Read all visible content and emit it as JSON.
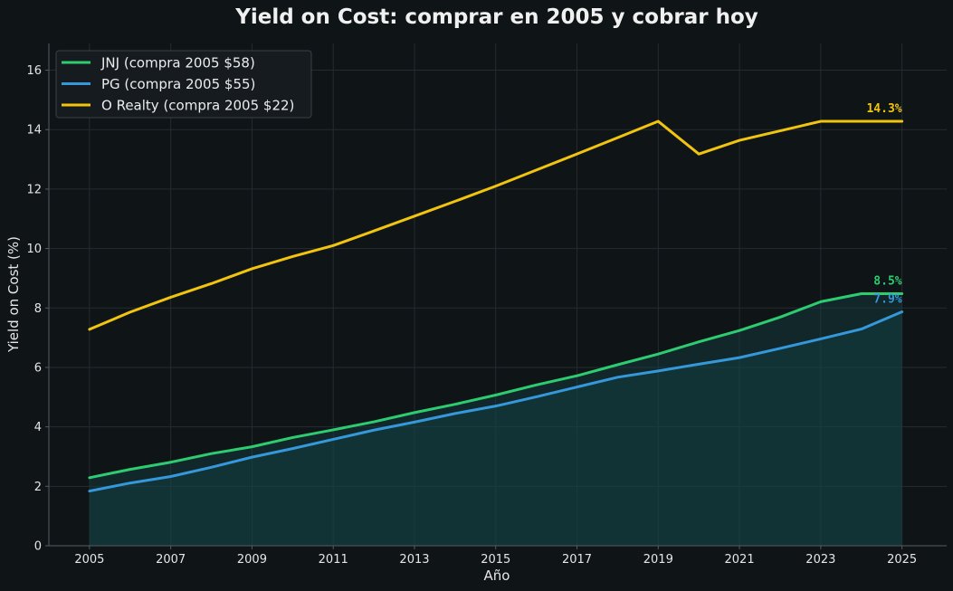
{
  "chart_data": {
    "type": "line",
    "title": "Yield on Cost: comprar en 2005 y cobrar hoy",
    "xlabel": "Año",
    "ylabel": "Yield on Cost (%)",
    "xlim": [
      2004,
      2026.1
    ],
    "ylim": [
      0,
      16.9
    ],
    "x_ticks": [
      2005,
      2007,
      2009,
      2011,
      2013,
      2015,
      2017,
      2019,
      2021,
      2023,
      2025
    ],
    "y_ticks": [
      0,
      2,
      4,
      6,
      8,
      10,
      12,
      14,
      16
    ],
    "grid": true,
    "legend_position": "top-left",
    "x": [
      2005,
      2006,
      2007,
      2008,
      2009,
      2010,
      2011,
      2012,
      2013,
      2014,
      2015,
      2016,
      2017,
      2018,
      2019,
      2020,
      2021,
      2022,
      2023,
      2024,
      2025
    ],
    "series": [
      {
        "name": "JNJ (compra 2005 $58)",
        "color": "#2ecc71",
        "values": [
          2.29,
          2.57,
          2.81,
          3.1,
          3.33,
          3.64,
          3.9,
          4.17,
          4.48,
          4.76,
          5.07,
          5.41,
          5.72,
          6.09,
          6.45,
          6.86,
          7.24,
          7.69,
          8.21,
          8.48,
          8.48
        ],
        "end_label": "8.5%"
      },
      {
        "name": "PG (compra 2005 $55)",
        "color": "#3498db",
        "values": [
          1.84,
          2.11,
          2.33,
          2.64,
          2.98,
          3.27,
          3.58,
          3.89,
          4.16,
          4.45,
          4.7,
          5.01,
          5.34,
          5.67,
          5.88,
          6.11,
          6.33,
          6.64,
          6.96,
          7.29,
          7.87
        ],
        "end_label": "7.9%"
      },
      {
        "name": "O Realty (compra 2005 $22)",
        "color": "#f1c40f",
        "values": [
          7.28,
          7.86,
          8.36,
          8.82,
          9.32,
          9.73,
          10.1,
          10.59,
          11.09,
          11.59,
          12.1,
          12.64,
          13.18,
          13.73,
          14.28,
          13.18,
          13.64,
          13.96,
          14.28,
          14.28,
          14.28
        ],
        "end_label": "14.3%"
      }
    ]
  },
  "colors": {
    "background": "#0f1417",
    "grid": "#252b2f",
    "spine": "#555b60",
    "fill": "#14474a"
  }
}
